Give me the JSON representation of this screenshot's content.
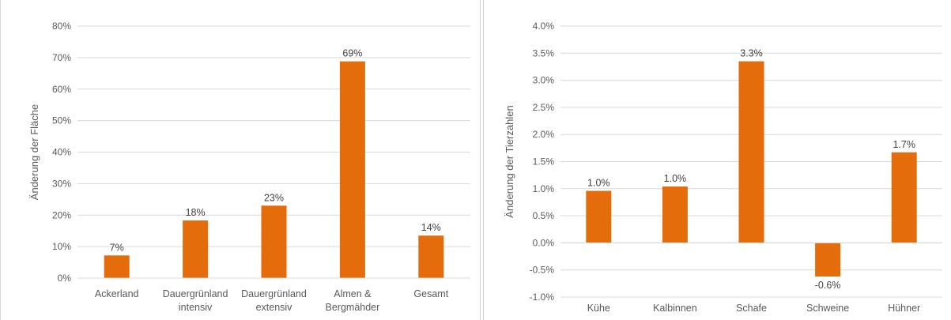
{
  "chart_data": [
    {
      "type": "bar",
      "title": "",
      "xlabel": "",
      "ylabel": "Änderung der Fläche",
      "ylim": [
        0,
        0.8
      ],
      "yticks": [
        0,
        0.1,
        0.2,
        0.3,
        0.4,
        0.5,
        0.6,
        0.7,
        0.8
      ],
      "ytick_labels": [
        "0%",
        "10%",
        "20%",
        "30%",
        "40%",
        "50%",
        "60%",
        "70%",
        "80%"
      ],
      "categories": [
        [
          "Ackerland"
        ],
        [
          "Dauergrünland",
          "intensiv"
        ],
        [
          "Dauergrünland",
          "extensiv"
        ],
        [
          "Almen &",
          "Bergmähder"
        ],
        [
          "Gesamt"
        ]
      ],
      "values": [
        0.072,
        0.183,
        0.23,
        0.688,
        0.135
      ],
      "data_labels": [
        "7%",
        "18%",
        "23%",
        "69%",
        "14%"
      ],
      "grid": true,
      "bar_color": "#E46C0A"
    },
    {
      "type": "bar",
      "title": "",
      "xlabel": "",
      "ylabel": "Änderung der Tierzahlen",
      "ylim": [
        -0.01,
        0.04
      ],
      "yticks": [
        -0.01,
        -0.005,
        0,
        0.005,
        0.01,
        0.015,
        0.02,
        0.025,
        0.03,
        0.035,
        0.04
      ],
      "ytick_labels": [
        "-1.0%",
        "-0.5%",
        "0.0%",
        "0.5%",
        "1.0%",
        "1.5%",
        "2.0%",
        "2.5%",
        "3.0%",
        "3.5%",
        "4.0%"
      ],
      "categories": [
        [
          "Kühe"
        ],
        [
          "Kalbinnen"
        ],
        [
          "Schafe"
        ],
        [
          "Schweine"
        ],
        [
          "Hühner"
        ]
      ],
      "values": [
        0.0096,
        0.0104,
        0.0335,
        -0.0062,
        0.0167
      ],
      "data_labels": [
        "1.0%",
        "1.0%",
        "3.3%",
        "-0.6%",
        "1.7%"
      ],
      "grid": true,
      "bar_color": "#E46C0A"
    }
  ]
}
